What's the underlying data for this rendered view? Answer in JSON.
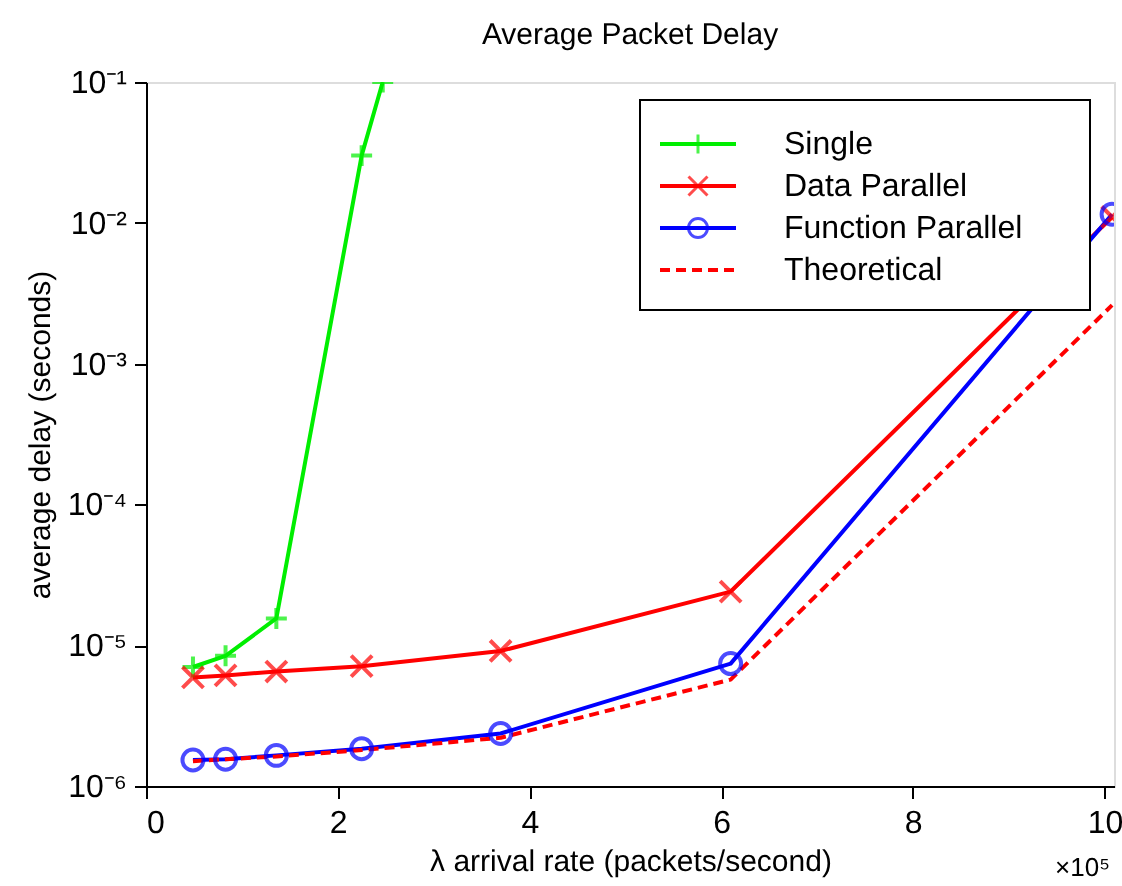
{
  "chart_data": {
    "type": "line",
    "title": "Average Packet Delay",
    "xlabel": "λ arrival rate (packets/second)",
    "ylabel": "average delay (seconds)",
    "log": "y",
    "xlim": [
      0,
      10.1
    ],
    "xticks": [
      0,
      2,
      4,
      6,
      8,
      10
    ],
    "ylim": [
      1e-06,
      0.1
    ],
    "yticks": [
      {
        "value": 1e-06,
        "label": "10⁻⁶"
      },
      {
        "value": 1e-05,
        "label": "10⁻⁵"
      },
      {
        "value": 0.0001,
        "label": "10⁻⁴"
      },
      {
        "value": 0.001,
        "label": "10⁻³"
      },
      {
        "value": 0.01,
        "label": "10⁻²"
      },
      {
        "value": 0.1,
        "label": "10⁻¹"
      }
    ],
    "grid": false,
    "legend": "top right",
    "annotations": [
      "×10⁵"
    ],
    "series": [
      {
        "name": "Single",
        "color": "#00ee00",
        "marker": "cross",
        "line_style": "solid",
        "x": [
          0.49,
          0.83,
          1.36,
          2.25,
          2.47
        ],
        "values": [
          7e-06,
          8.4e-06,
          1.55e-05,
          0.03,
          0.1
        ]
      },
      {
        "name": "Data Parallel",
        "color": "#ff0000",
        "marker": "x",
        "line_style": "solid",
        "x": [
          0.49,
          0.83,
          1.36,
          2.25,
          3.7,
          6.1,
          10.08
        ],
        "values": [
          5.9e-06,
          6.1e-06,
          6.5e-06,
          7.1e-06,
          9.1e-06,
          2.4e-05,
          0.011
        ]
      },
      {
        "name": "Function Parallel",
        "color": "#0000ff",
        "marker": "circle",
        "line_style": "solid",
        "x": [
          0.49,
          0.83,
          1.36,
          2.25,
          3.7,
          6.1,
          10.08
        ],
        "values": [
          1.53e-06,
          1.55e-06,
          1.65e-06,
          1.84e-06,
          2.36e-06,
          7.4e-06,
          0.0115
        ]
      },
      {
        "name": "Theoretical",
        "color": "#ff0000",
        "marker": "none",
        "line_style": "dashed",
        "x": [
          0.49,
          0.83,
          1.36,
          2.25,
          3.7,
          6.1,
          10.08
        ],
        "values": [
          1.5e-06,
          1.55e-06,
          1.62e-06,
          1.8e-06,
          2.2e-06,
          5.7e-06,
          0.0026
        ]
      }
    ]
  }
}
